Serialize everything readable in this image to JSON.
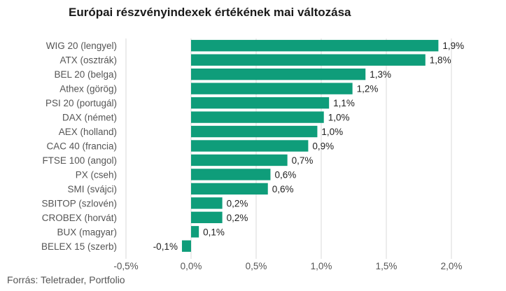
{
  "chart_data": {
    "type": "bar",
    "orientation": "horizontal",
    "title": "Európai részvényindexek értékének mai változása",
    "categories": [
      "WIG 20 (lengyel)",
      "ATX (osztrák)",
      "BEL 20 (belga)",
      "Athex (görög)",
      "PSI 20 (portugál)",
      "DAX (német)",
      "AEX (holland)",
      "CAC 40 (francia)",
      "FTSE 100 (angol)",
      "PX (cseh)",
      "SMI (svájci)",
      "SBITOP (szlovén)",
      "CROBEX (horvát)",
      "BUX (magyar)",
      "BELEX 15 (szerb)"
    ],
    "values": [
      1.9,
      1.8,
      1.34,
      1.24,
      1.06,
      1.02,
      0.97,
      0.9,
      0.74,
      0.61,
      0.59,
      0.24,
      0.24,
      0.06,
      -0.07
    ],
    "value_labels": [
      "1,9%",
      "1,8%",
      "1,3%",
      "1,2%",
      "1,1%",
      "1,0%",
      "1,0%",
      "0,9%",
      "0,7%",
      "0,6%",
      "0,6%",
      "0,2%",
      "0,2%",
      "0,1%",
      "-0,1%"
    ],
    "xlim": [
      -0.5,
      2.0
    ],
    "x_ticks": [
      -0.5,
      0.0,
      0.5,
      1.0,
      1.5,
      2.0
    ],
    "x_tick_labels": [
      "-0,5%",
      "0,0%",
      "0,5%",
      "1,0%",
      "1,5%",
      "2,0%"
    ],
    "grid": true,
    "bar_color": "#0f9d7a",
    "grid_color": "#d9d9d9"
  },
  "source": "Forrás: Teletrader, Portfolio"
}
